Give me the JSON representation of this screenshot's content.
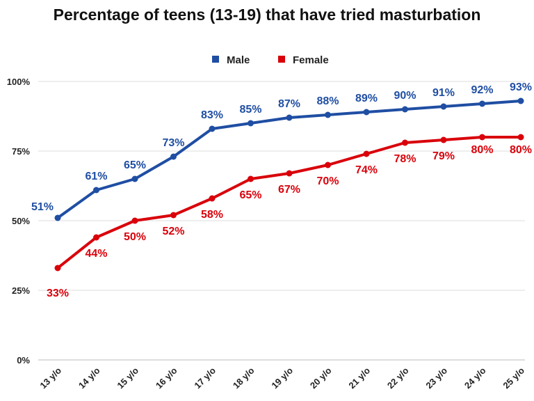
{
  "chart_data": {
    "type": "line",
    "title": "Percentage of teens (13-19) that have tried masturbation",
    "categories": [
      "13 y/o",
      "14 y/o",
      "15 y/o",
      "16 y/o",
      "17 y/o",
      "18 y/o",
      "19 y/o",
      "20 y/o",
      "21 y/o",
      "22 y/o",
      "23 y/o",
      "24 y/o",
      "25 y/o"
    ],
    "y_ticks": [
      "0%",
      "25%",
      "50%",
      "75%",
      "100%"
    ],
    "y_tick_values": [
      0,
      25,
      50,
      75,
      100
    ],
    "ylim": [
      0,
      100
    ],
    "grid": true,
    "legend_position": "top-center",
    "series": [
      {
        "name": "Male",
        "color": "#1f4ea3",
        "values": [
          51,
          61,
          65,
          73,
          83,
          85,
          87,
          88,
          89,
          90,
          91,
          92,
          93
        ],
        "labels": [
          "51%",
          "61%",
          "65%",
          "73%",
          "83%",
          "85%",
          "87%",
          "88%",
          "89%",
          "90%",
          "91%",
          "92%",
          "93%"
        ],
        "label_side": "above"
      },
      {
        "name": "Female",
        "color": "#d9000a",
        "values": [
          33,
          44,
          50,
          52,
          58,
          65,
          67,
          70,
          74,
          78,
          79,
          80,
          80
        ],
        "labels": [
          "33%",
          "44%",
          "50%",
          "52%",
          "58%",
          "65%",
          "67%",
          "70%",
          "74%",
          "78%",
          "79%",
          "80%",
          "80%"
        ],
        "label_side": "below"
      }
    ]
  }
}
